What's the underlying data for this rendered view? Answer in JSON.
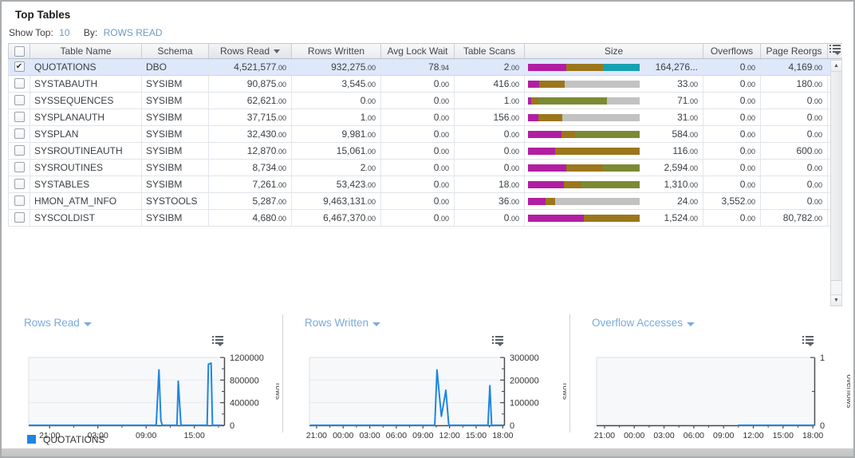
{
  "panel": {
    "title": "Top Tables",
    "show_top_label": "Show Top:",
    "show_top_value": "10",
    "by_label": "By:",
    "by_value": "ROWS READ"
  },
  "table": {
    "columns": [
      {
        "key": "table_name",
        "label": "Table Name"
      },
      {
        "key": "schema",
        "label": "Schema"
      },
      {
        "key": "rows_read",
        "label": "Rows Read",
        "sorted": "desc"
      },
      {
        "key": "rows_written",
        "label": "Rows Written"
      },
      {
        "key": "avg_lock_wait",
        "label": "Avg Lock Wait"
      },
      {
        "key": "table_scans",
        "label": "Table Scans"
      },
      {
        "key": "size",
        "label": "Size"
      },
      {
        "key": "overflows",
        "label": "Overflows"
      },
      {
        "key": "page_reorgs",
        "label": "Page Reorgs"
      }
    ],
    "rows": [
      {
        "selected": true,
        "table_name": "QUOTATIONS",
        "schema": "DBO",
        "rows_read": "4,521,577.00",
        "rows_written": "932,275.00",
        "avg_lock_wait": "78.94",
        "table_scans": "2.00",
        "size_value": "164,276...",
        "size_segments": [
          {
            "color": "magenta",
            "pct": 34
          },
          {
            "color": "gold",
            "pct": 33
          },
          {
            "color": "teal",
            "pct": 33
          }
        ],
        "overflows": "0.00",
        "page_reorgs": "4,169.00"
      },
      {
        "selected": false,
        "table_name": "SYSTABAUTH",
        "schema": "SYSIBM",
        "rows_read": "90,875.00",
        "rows_written": "3,545.00",
        "avg_lock_wait": "0.00",
        "table_scans": "416.00",
        "size_value": "33.00",
        "size_segments": [
          {
            "color": "magenta",
            "pct": 10
          },
          {
            "color": "gold",
            "pct": 23
          },
          {
            "color": "gray",
            "pct": 67
          }
        ],
        "overflows": "0.00",
        "page_reorgs": "180.00"
      },
      {
        "selected": false,
        "table_name": "SYSSEQUENCES",
        "schema": "SYSIBM",
        "rows_read": "62,621.00",
        "rows_written": "0.00",
        "avg_lock_wait": "0.00",
        "table_scans": "1.00",
        "size_value": "71.00",
        "size_segments": [
          {
            "color": "magenta",
            "pct": 3
          },
          {
            "color": "gold",
            "pct": 6
          },
          {
            "color": "olive",
            "pct": 62
          },
          {
            "color": "gray",
            "pct": 29
          }
        ],
        "overflows": "0.00",
        "page_reorgs": "0.00"
      },
      {
        "selected": false,
        "table_name": "SYSPLANAUTH",
        "schema": "SYSIBM",
        "rows_read": "37,715.00",
        "rows_written": "1.00",
        "avg_lock_wait": "0.00",
        "table_scans": "156.00",
        "size_value": "31.00",
        "size_segments": [
          {
            "color": "magenta",
            "pct": 9
          },
          {
            "color": "gold",
            "pct": 22
          },
          {
            "color": "gray",
            "pct": 69
          }
        ],
        "overflows": "0.00",
        "page_reorgs": "0.00"
      },
      {
        "selected": false,
        "table_name": "SYSPLAN",
        "schema": "SYSIBM",
        "rows_read": "32,430.00",
        "rows_written": "9,981.00",
        "avg_lock_wait": "0.00",
        "table_scans": "0.00",
        "size_value": "584.00",
        "size_segments": [
          {
            "color": "magenta",
            "pct": 30
          },
          {
            "color": "gold",
            "pct": 12
          },
          {
            "color": "olive",
            "pct": 58
          }
        ],
        "overflows": "0.00",
        "page_reorgs": "0.00"
      },
      {
        "selected": false,
        "table_name": "SYSROUTINEAUTH",
        "schema": "SYSIBM",
        "rows_read": "12,870.00",
        "rows_written": "15,061.00",
        "avg_lock_wait": "0.00",
        "table_scans": "0.00",
        "size_value": "116.00",
        "size_segments": [
          {
            "color": "magenta",
            "pct": 24
          },
          {
            "color": "gold",
            "pct": 76
          }
        ],
        "overflows": "0.00",
        "page_reorgs": "600.00"
      },
      {
        "selected": false,
        "table_name": "SYSROUTINES",
        "schema": "SYSIBM",
        "rows_read": "8,734.00",
        "rows_written": "2.00",
        "avg_lock_wait": "0.00",
        "table_scans": "0.00",
        "size_value": "2,594.00",
        "size_segments": [
          {
            "color": "magenta",
            "pct": 34
          },
          {
            "color": "gold",
            "pct": 33
          },
          {
            "color": "olive",
            "pct": 33
          }
        ],
        "overflows": "0.00",
        "page_reorgs": "0.00"
      },
      {
        "selected": false,
        "table_name": "SYSTABLES",
        "schema": "SYSIBM",
        "rows_read": "7,261.00",
        "rows_written": "53,423.00",
        "avg_lock_wait": "0.00",
        "table_scans": "18.00",
        "size_value": "1,310.00",
        "size_segments": [
          {
            "color": "magenta",
            "pct": 32
          },
          {
            "color": "gold",
            "pct": 16
          },
          {
            "color": "olive",
            "pct": 52
          }
        ],
        "overflows": "0.00",
        "page_reorgs": "0.00"
      },
      {
        "selected": false,
        "table_name": "HMON_ATM_INFO",
        "schema": "SYSTOOLS",
        "rows_read": "5,287.00",
        "rows_written": "9,463,131.00",
        "avg_lock_wait": "0.00",
        "table_scans": "36.00",
        "size_value": "24.00",
        "size_segments": [
          {
            "color": "magenta",
            "pct": 16
          },
          {
            "color": "gold",
            "pct": 8
          },
          {
            "color": "gray",
            "pct": 76
          }
        ],
        "overflows": "3,552.00",
        "page_reorgs": "0.00"
      },
      {
        "selected": false,
        "table_name": "SYSCOLDIST",
        "schema": "SYSIBM",
        "rows_read": "4,680.00",
        "rows_written": "6,467,370.00",
        "avg_lock_wait": "0.00",
        "table_scans": "0.00",
        "size_value": "1,524.00",
        "size_segments": [
          {
            "color": "magenta",
            "pct": 50
          },
          {
            "color": "gold",
            "pct": 50
          }
        ],
        "overflows": "0.00",
        "page_reorgs": "80,782.00"
      }
    ]
  },
  "colors": {
    "bar_palette": {
      "magenta": "#b11ea2",
      "gold": "#9b761c",
      "teal": "#17a0b0",
      "olive": "#7c8a33",
      "gray": "#c2c2c2"
    },
    "line_blue": "#1f86e0",
    "link_blue": "#6d9cc3",
    "chart_title_blue": "#7aabdc",
    "selected_row": "#dfe8fb"
  },
  "legend": {
    "label": "QUOTATIONS",
    "color": "#1f86e0"
  },
  "chart_data": [
    {
      "type": "line",
      "title": "Rows Read",
      "ylabel": "rows",
      "ylim": [
        0,
        1200000
      ],
      "yticks": [
        0,
        400000,
        800000,
        1200000
      ],
      "x_domain_hours": [
        18.4,
        42.7
      ],
      "xticks": [
        {
          "h": 21,
          "label": "21:00"
        },
        {
          "h": 27,
          "label": "03:00"
        },
        {
          "h": 33,
          "label": "09:00"
        },
        {
          "h": 39,
          "label": "15:00"
        }
      ],
      "xticks_minor": [
        24,
        30,
        36,
        42
      ],
      "grid": true,
      "legend_position": "bottom-left",
      "series": [
        {
          "name": "QUOTATIONS",
          "color": "#1f86e0",
          "points": [
            [
              "18:30",
              0
            ],
            [
              "10:15",
              0
            ],
            [
              "10:36",
              980000
            ],
            [
              "10:50",
              90000
            ],
            [
              "11:00",
              0
            ],
            [
              "12:50",
              0
            ],
            [
              "13:00",
              780000
            ],
            [
              "13:20",
              0
            ],
            [
              "16:35",
              0
            ],
            [
              "16:45",
              1080000
            ],
            [
              "17:05",
              1100000
            ],
            [
              "17:15",
              0
            ],
            [
              "18:20",
              0
            ]
          ]
        }
      ]
    },
    {
      "type": "line",
      "title": "Rows Written",
      "ylabel": "rows",
      "ylim": [
        0,
        300000
      ],
      "yticks": [
        0,
        100000,
        200000,
        300000
      ],
      "x_domain_hours": [
        20.2,
        42.15
      ],
      "xticks": [
        {
          "h": 21,
          "label": "21:00"
        },
        {
          "h": 24,
          "label": "00:00"
        },
        {
          "h": 27,
          "label": "03:00"
        },
        {
          "h": 30,
          "label": "06:00"
        },
        {
          "h": 33,
          "label": "09:00"
        },
        {
          "h": 36,
          "label": "12:00"
        },
        {
          "h": 39,
          "label": "15:00"
        },
        {
          "h": 42,
          "label": "18:00"
        }
      ],
      "xticks_minor": [
        22.5,
        25.5,
        28.5,
        31.5,
        34.5,
        37.5,
        40.5
      ],
      "grid": true,
      "series": [
        {
          "name": "QUOTATIONS",
          "color": "#1f86e0",
          "points": [
            [
              "20:20",
              0
            ],
            [
              "10:20",
              0
            ],
            [
              "10:35",
              245000
            ],
            [
              "11:05",
              40000
            ],
            [
              "11:35",
              155000
            ],
            [
              "11:55",
              0
            ],
            [
              "16:20",
              0
            ],
            [
              "16:33",
              175000
            ],
            [
              "16:45",
              0
            ],
            [
              "18:05",
              0
            ]
          ]
        }
      ]
    },
    {
      "type": "line",
      "title": "Overflow Accesses",
      "ylabel": "overflows",
      "ylim": [
        0,
        1
      ],
      "yticks": [
        0,
        1
      ],
      "x_domain_hours": [
        20.2,
        42.15
      ],
      "xticks": [
        {
          "h": 21,
          "label": "21:00"
        },
        {
          "h": 24,
          "label": "00:00"
        },
        {
          "h": 27,
          "label": "03:00"
        },
        {
          "h": 30,
          "label": "06:00"
        },
        {
          "h": 33,
          "label": "09:00"
        },
        {
          "h": 36,
          "label": "12:00"
        },
        {
          "h": 39,
          "label": "15:00"
        },
        {
          "h": 42,
          "label": "18:00"
        }
      ],
      "xticks_minor": [
        22.5,
        25.5,
        28.5,
        31.5,
        34.5,
        37.5,
        40.5
      ],
      "grid": true,
      "series": [
        {
          "name": "QUOTATIONS",
          "color": "#1f86e0",
          "points": [
            [
              "10:30",
              0
            ],
            [
              "18:05",
              0
            ]
          ]
        }
      ]
    }
  ]
}
